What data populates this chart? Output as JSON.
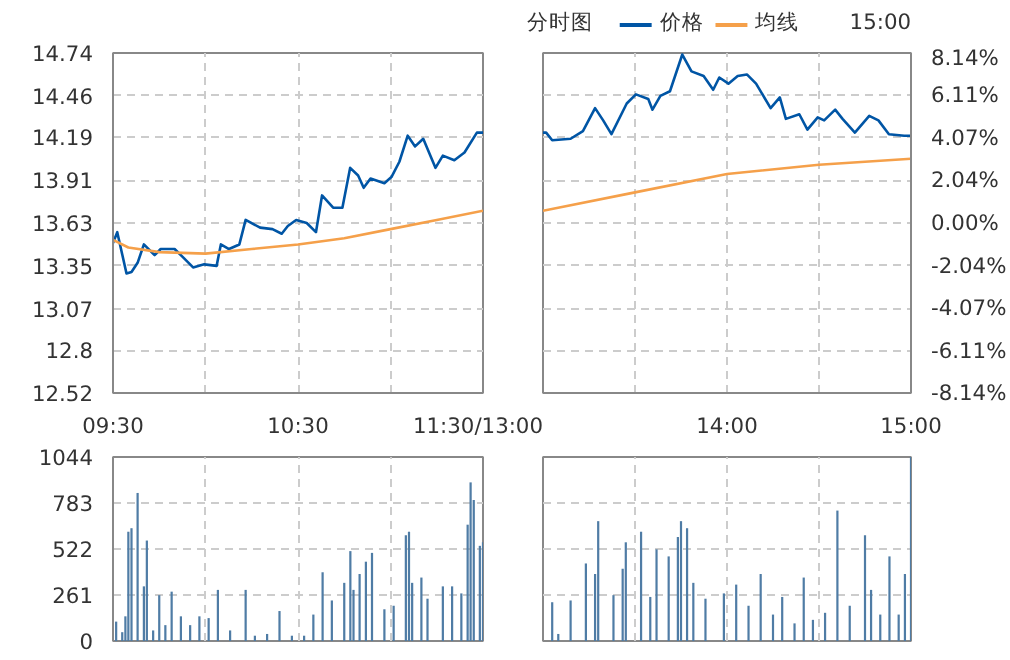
{
  "chart_data": [
    {
      "type": "line",
      "grid": true,
      "marker": "none",
      "line_style": "solid",
      "xlim": [
        9.5,
        11.5
      ],
      "xticks": [
        {
          "value": 9.5,
          "label": "09:30"
        },
        {
          "value": 10,
          "label": null
        },
        {
          "value": 10.5,
          "label": "10:30"
        },
        {
          "value": 11,
          "label": null
        },
        {
          "value": 11.5,
          "label": "11:30/13:00"
        }
      ],
      "ylim": [
        12.52,
        14.74
      ],
      "yticks": [
        12.52,
        12.8,
        13.07,
        13.35,
        13.63,
        13.91,
        14.19,
        14.46,
        14.74
      ],
      "series": [
        {
          "color": "#0055a5",
          "x": [
            9.5,
            9.523,
            9.573,
            9.6,
            9.633,
            9.667,
            9.725,
            9.758,
            9.833,
            9.875,
            9.933,
            9.993,
            10.06,
            10.083,
            10.127,
            10.183,
            10.217,
            10.295,
            10.362,
            10.412,
            10.445,
            10.49,
            10.547,
            10.597,
            10.63,
            10.69,
            10.74,
            10.782,
            10.825,
            10.855,
            10.892,
            10.967,
            11.005,
            11.048,
            11.093,
            11.133,
            11.177,
            11.243,
            11.283,
            11.345,
            11.4,
            11.467,
            11.5
          ],
          "values": [
            13.5,
            13.57,
            13.3,
            13.31,
            13.37,
            13.49,
            13.42,
            13.46,
            13.46,
            13.41,
            13.34,
            13.36,
            13.35,
            13.49,
            13.46,
            13.49,
            13.65,
            13.6,
            13.59,
            13.56,
            13.61,
            13.65,
            13.63,
            13.57,
            13.81,
            13.73,
            13.73,
            13.99,
            13.94,
            13.86,
            13.92,
            13.89,
            13.93,
            14.03,
            14.2,
            14.13,
            14.18,
            13.99,
            14.07,
            14.04,
            14.09,
            14.22,
            14.22
          ]
        },
        {
          "color": "#f5a04a",
          "x": [
            9.5,
            9.583,
            9.75,
            10,
            10.25,
            10.5,
            10.75,
            11,
            11.25,
            11.5
          ],
          "values": [
            13.52,
            13.47,
            13.44,
            13.43,
            13.46,
            13.49,
            13.53,
            13.59,
            13.65,
            13.71
          ]
        }
      ]
    },
    {
      "type": "line",
      "title": "分时图",
      "annotations": [
        "15:00"
      ],
      "legend": "top",
      "grid": true,
      "tick_labels": "x",
      "marker": "none",
      "line_style": "solid",
      "xlim": [
        13,
        15
      ],
      "xticks": [
        {
          "value": 13,
          "label": null
        },
        {
          "value": 13.5,
          "label": null
        },
        {
          "value": 14,
          "label": "14:00"
        },
        {
          "value": 14.5,
          "label": null
        },
        {
          "value": 15,
          "label": "15:00"
        }
      ],
      "ylim": [
        12.52,
        14.74
      ],
      "yticks": [
        12.52,
        12.8,
        13.07,
        13.35,
        13.63,
        13.91,
        14.19,
        14.46,
        14.74
      ],
      "y2lim": [
        -8.14,
        8.14
      ],
      "y2ticks": [
        {
          "value": -8.14,
          "label": "-8.14%"
        },
        {
          "value": -6.11,
          "label": "-6.11%"
        },
        {
          "value": -4.07,
          "label": "-4.07%"
        },
        {
          "value": -2.04,
          "label": "-2.04%"
        },
        {
          "value": 0,
          "label": "0.00%"
        },
        {
          "value": 2.04,
          "label": "2.04%"
        },
        {
          "value": 4.07,
          "label": "4.07%"
        },
        {
          "value": 6.11,
          "label": "6.11%"
        },
        {
          "value": 8.14,
          "label": "8.14%"
        }
      ],
      "series": [
        {
          "name": "价格",
          "color": "#0055a5",
          "x": [
            13,
            13.017,
            13.05,
            13.15,
            13.217,
            13.283,
            13.327,
            13.372,
            13.455,
            13.505,
            13.572,
            13.595,
            13.638,
            13.69,
            13.757,
            13.807,
            13.873,
            13.925,
            13.958,
            14.008,
            14.058,
            14.108,
            14.158,
            14.237,
            14.287,
            14.32,
            14.393,
            14.437,
            14.493,
            14.528,
            14.588,
            14.628,
            14.695,
            14.773,
            14.823,
            14.88,
            14.963,
            15
          ],
          "values": [
            14.22,
            14.22,
            14.17,
            14.18,
            14.23,
            14.38,
            14.3,
            14.21,
            14.41,
            14.47,
            14.44,
            14.37,
            14.46,
            14.49,
            14.73,
            14.62,
            14.59,
            14.5,
            14.58,
            14.54,
            14.59,
            14.6,
            14.54,
            14.38,
            14.45,
            14.31,
            14.34,
            14.24,
            14.32,
            14.3,
            14.37,
            14.31,
            14.22,
            14.33,
            14.3,
            14.21,
            14.2,
            14.2
          ]
        },
        {
          "name": "均线",
          "color": "#f5a04a",
          "x": [
            13,
            13.5,
            14,
            14.5,
            15
          ],
          "values": [
            13.71,
            13.83,
            13.95,
            14.01,
            14.05
          ]
        }
      ]
    },
    {
      "type": "bar",
      "grid": true,
      "tick_labels": "y",
      "color": "#4f7ca5",
      "xlim": [
        9.5,
        11.5
      ],
      "xticks": [
        {
          "value": 9.5,
          "label": null
        },
        {
          "value": 10,
          "label": null
        },
        {
          "value": 10.5,
          "label": null
        },
        {
          "value": 11,
          "label": null
        },
        {
          "value": 11.5,
          "label": null
        }
      ],
      "ylim": [
        0,
        1044
      ],
      "yticks": [
        0,
        261,
        522,
        783,
        1044
      ],
      "x": [
        9.517,
        9.55,
        9.567,
        9.583,
        9.6,
        9.633,
        9.667,
        9.683,
        9.717,
        9.75,
        9.783,
        9.817,
        9.867,
        9.917,
        9.967,
        10.017,
        10.067,
        10.133,
        10.217,
        10.267,
        10.333,
        10.4,
        10.467,
        10.533,
        10.583,
        10.633,
        10.683,
        10.75,
        10.783,
        10.8,
        10.833,
        10.867,
        10.9,
        10.967,
        11.017,
        11.083,
        11.1,
        11.117,
        11.167,
        11.2,
        11.283,
        11.333,
        11.383,
        11.417,
        11.433,
        11.45,
        11.483,
        11.5
      ],
      "values": [
        110,
        50,
        140,
        620,
        640,
        840,
        310,
        570,
        60,
        260,
        90,
        280,
        140,
        90,
        140,
        130,
        290,
        60,
        290,
        30,
        40,
        170,
        30,
        30,
        150,
        390,
        230,
        330,
        510,
        290,
        380,
        450,
        500,
        180,
        200,
        600,
        620,
        330,
        360,
        240,
        310,
        310,
        270,
        660,
        900,
        800,
        540,
        560
      ]
    },
    {
      "type": "bar",
      "grid": true,
      "tick_labels": false,
      "color": "#4f7ca5",
      "xlim": [
        13,
        15
      ],
      "xticks": [
        {
          "value": 13,
          "label": null
        },
        {
          "value": 13.5,
          "label": null
        },
        {
          "value": 14,
          "label": null
        },
        {
          "value": 14.5,
          "label": null
        },
        {
          "value": 15,
          "label": null
        }
      ],
      "ylim": [
        0,
        1044
      ],
      "yticks": [
        0,
        261,
        522,
        783,
        1044
      ],
      "x": [
        13.05,
        13.083,
        13.15,
        13.233,
        13.283,
        13.3,
        13.383,
        13.433,
        13.45,
        13.533,
        13.583,
        13.617,
        13.683,
        13.733,
        13.75,
        13.783,
        13.817,
        13.883,
        13.983,
        14.05,
        14.117,
        14.183,
        14.25,
        14.3,
        14.367,
        14.417,
        14.467,
        14.533,
        14.6,
        14.667,
        14.75,
        14.783,
        14.833,
        14.883,
        14.933,
        14.967,
        15
      ],
      "values": [
        220,
        40,
        230,
        440,
        380,
        680,
        260,
        410,
        560,
        620,
        250,
        520,
        480,
        590,
        680,
        640,
        330,
        240,
        270,
        320,
        200,
        380,
        150,
        250,
        100,
        360,
        120,
        160,
        740,
        200,
        600,
        290,
        150,
        480,
        150,
        380,
        1044
      ]
    }
  ]
}
